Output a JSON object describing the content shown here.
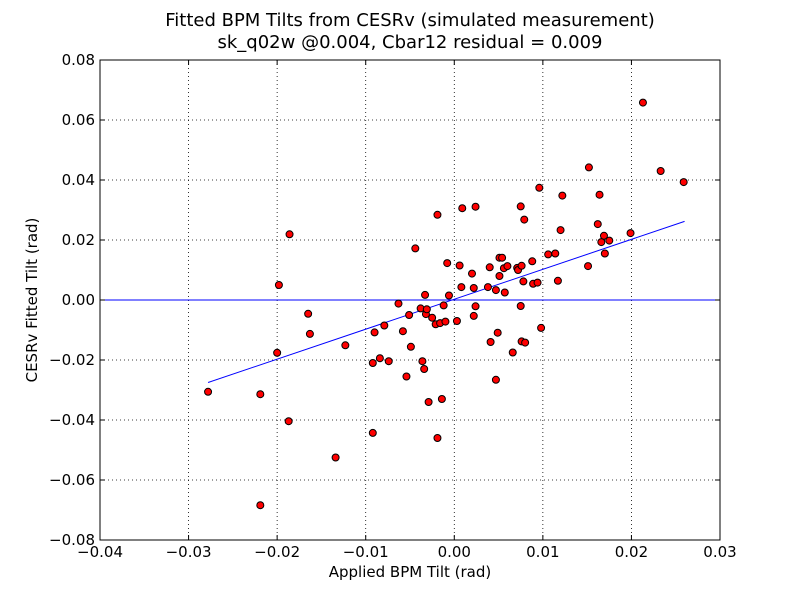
{
  "chart_data": {
    "type": "scatter",
    "title": "Fitted BPM Tilts from CESRv (simulated measurement)",
    "subtitle": "sk_q02w @0.004, Cbar12 residual = 0.009",
    "xlabel": "Applied BPM Tilt (rad)",
    "ylabel": "CESRv Fitted Tilt (rad)",
    "xlim": [
      -0.04,
      0.03
    ],
    "ylim": [
      -0.08,
      0.08
    ],
    "xticks": [
      -0.04,
      -0.03,
      -0.02,
      -0.01,
      0.0,
      0.01,
      0.02,
      0.03
    ],
    "xtick_labels": [
      "−0.04",
      "−0.03",
      "−0.02",
      "−0.01",
      "0.00",
      "0.01",
      "0.02",
      "0.03"
    ],
    "yticks": [
      -0.08,
      -0.06,
      -0.04,
      -0.02,
      0.0,
      0.02,
      0.04,
      0.06,
      0.08
    ],
    "ytick_labels": [
      "−0.08",
      "−0.06",
      "−0.04",
      "−0.02",
      "0.00",
      "0.02",
      "0.04",
      "0.06",
      "0.08"
    ],
    "grid": "dotted",
    "marker_color": "#ff0000",
    "line_color": "#0000ff",
    "fit_line": {
      "x": [
        -0.0278,
        0.026
      ],
      "y": [
        -0.0275,
        0.0262
      ]
    },
    "zero_line": {
      "y": 0.0
    },
    "points": [
      [
        -0.0278,
        -0.0306
      ],
      [
        -0.0219,
        -0.0684
      ],
      [
        -0.0219,
        -0.0314
      ],
      [
        -0.02,
        -0.0176
      ],
      [
        -0.0198,
        0.005
      ],
      [
        -0.0187,
        -0.0404
      ],
      [
        -0.0186,
        0.0219
      ],
      [
        -0.0165,
        -0.0046
      ],
      [
        -0.0163,
        -0.0113
      ],
      [
        -0.0134,
        -0.0525
      ],
      [
        -0.0123,
        -0.0151
      ],
      [
        -0.0092,
        -0.0443
      ],
      [
        -0.0092,
        -0.021
      ],
      [
        -0.009,
        -0.0108
      ],
      [
        -0.0084,
        -0.0194
      ],
      [
        -0.0079,
        -0.0085
      ],
      [
        -0.0074,
        -0.0204
      ],
      [
        -0.0063,
        -0.0012
      ],
      [
        -0.0058,
        -0.0104
      ],
      [
        -0.0054,
        -0.0255
      ],
      [
        -0.0051,
        -0.005
      ],
      [
        -0.0049,
        -0.0156
      ],
      [
        -0.0044,
        0.0172
      ],
      [
        -0.0038,
        -0.0028
      ],
      [
        -0.0036,
        -0.0204
      ],
      [
        -0.0034,
        -0.023
      ],
      [
        -0.0033,
        0.0017
      ],
      [
        -0.0032,
        -0.0047
      ],
      [
        -0.0031,
        -0.0031
      ],
      [
        -0.0029,
        -0.034
      ],
      [
        -0.0025,
        -0.0059
      ],
      [
        -0.0021,
        -0.0081
      ],
      [
        -0.0019,
        -0.046
      ],
      [
        -0.0019,
        0.0284
      ],
      [
        -0.0016,
        -0.0077
      ],
      [
        -0.0014,
        -0.033
      ],
      [
        -0.0012,
        -0.0018
      ],
      [
        -0.001,
        -0.0072
      ],
      [
        -0.0008,
        0.0123
      ],
      [
        -0.0006,
        0.0015
      ],
      [
        0.0003,
        -0.007
      ],
      [
        0.0006,
        0.0115
      ],
      [
        0.0008,
        0.0043
      ],
      [
        0.0009,
        0.0306
      ],
      [
        0.002,
        0.0088
      ],
      [
        0.0022,
        -0.0053
      ],
      [
        0.0022,
        0.004
      ],
      [
        0.0024,
        0.0311
      ],
      [
        0.0024,
        -0.0021
      ],
      [
        0.0038,
        0.0043
      ],
      [
        0.004,
        0.0109
      ],
      [
        0.0041,
        -0.014
      ],
      [
        0.0047,
        0.0033
      ],
      [
        0.0047,
        -0.0266
      ],
      [
        0.0049,
        -0.0109
      ],
      [
        0.0051,
        0.008
      ],
      [
        0.0051,
        0.0141
      ],
      [
        0.0054,
        0.0141
      ],
      [
        0.0056,
        0.0106
      ],
      [
        0.0057,
        0.0025
      ],
      [
        0.006,
        0.0113
      ],
      [
        0.0066,
        -0.0175
      ],
      [
        0.0071,
        0.0107
      ],
      [
        0.0072,
        0.01
      ],
      [
        0.0075,
        0.0312
      ],
      [
        0.0075,
        -0.002
      ],
      [
        0.0076,
        0.0114
      ],
      [
        0.0076,
        -0.0138
      ],
      [
        0.0078,
        0.0062
      ],
      [
        0.0079,
        0.0268
      ],
      [
        0.008,
        -0.0142
      ],
      [
        0.0088,
        0.0129
      ],
      [
        0.0089,
        0.0054
      ],
      [
        0.0094,
        0.0058
      ],
      [
        0.0096,
        0.0374
      ],
      [
        0.0098,
        -0.0093
      ],
      [
        0.0106,
        0.0152
      ],
      [
        0.0114,
        0.0155
      ],
      [
        0.0117,
        0.0064
      ],
      [
        0.012,
        0.0233
      ],
      [
        0.0122,
        0.0348
      ],
      [
        0.0151,
        0.0113
      ],
      [
        0.0152,
        0.0442
      ],
      [
        0.0162,
        0.0253
      ],
      [
        0.0164,
        0.0351
      ],
      [
        0.0166,
        0.0193
      ],
      [
        0.0169,
        0.0214
      ],
      [
        0.017,
        0.0155
      ],
      [
        0.0175,
        0.0198
      ],
      [
        0.0199,
        0.0223
      ],
      [
        0.0213,
        0.0658
      ],
      [
        0.0233,
        0.043
      ],
      [
        0.0259,
        0.0393
      ]
    ]
  }
}
